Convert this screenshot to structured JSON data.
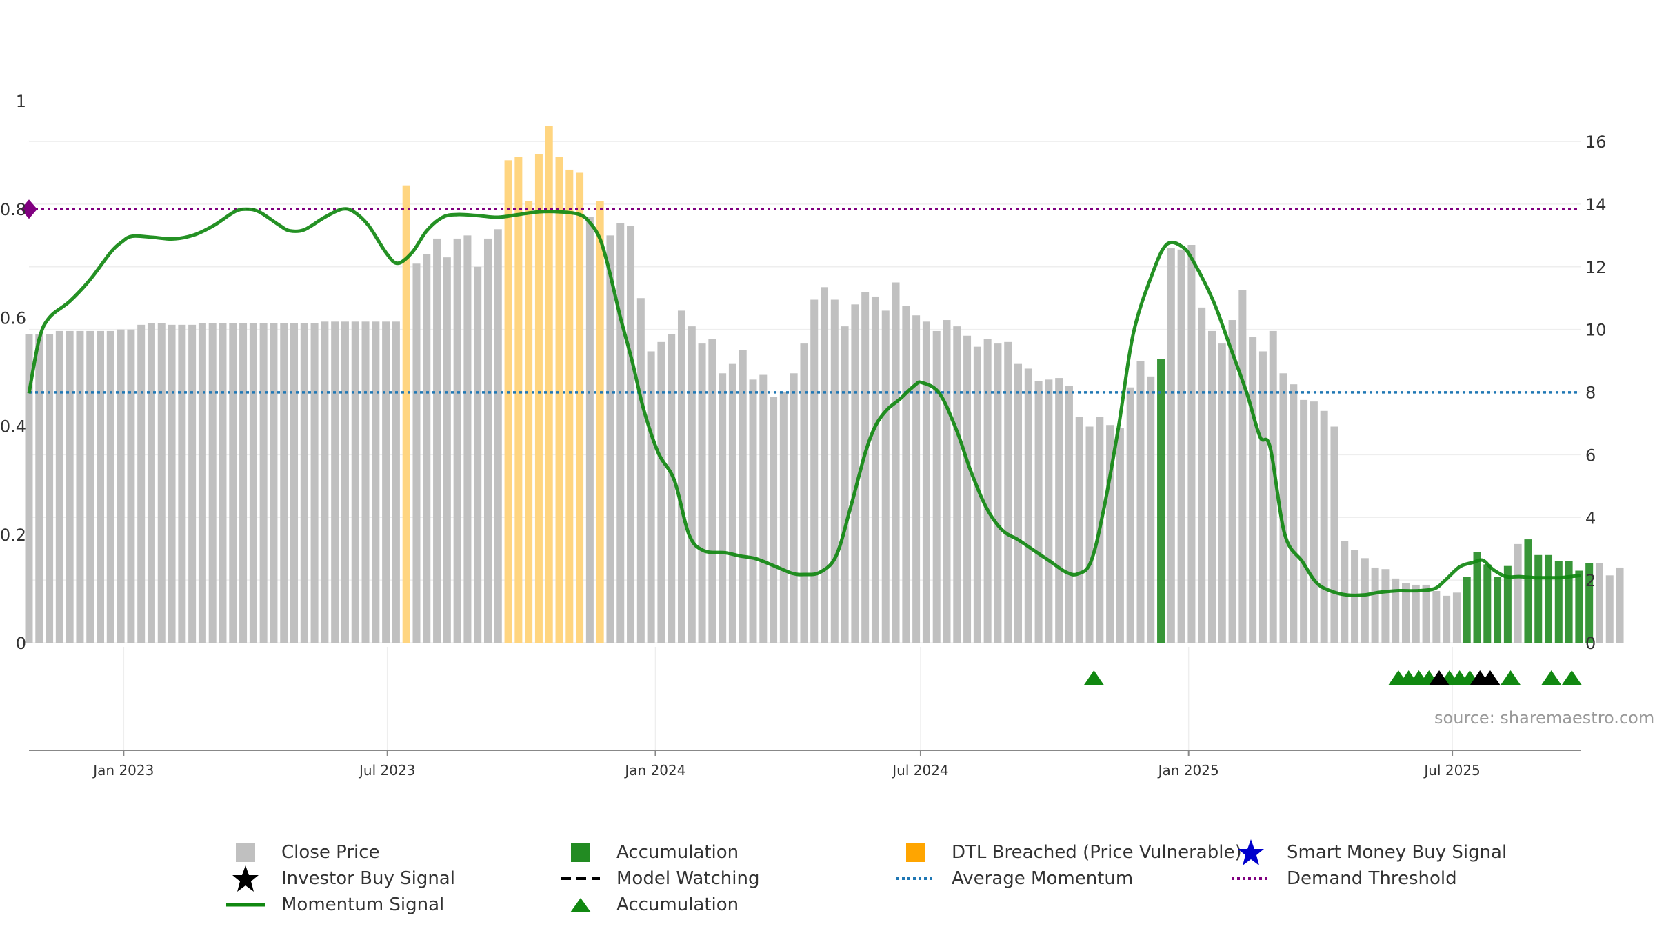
{
  "chart_data": {
    "type": "bar",
    "title": "",
    "source": "source: sharemaestro.com",
    "left_axis": {
      "ticks": [
        "0",
        "0.2",
        "0.4",
        "0.6",
        "0.8",
        "1"
      ],
      "range": [
        0,
        1
      ]
    },
    "right_axis": {
      "ticks": [
        "0",
        "2",
        "4",
        "6",
        "8",
        "10",
        "12",
        "14",
        "16"
      ],
      "range": [
        0,
        17.3
      ]
    },
    "x_axis": {
      "ticks": [
        "Jan 2023",
        "Jul 2023",
        "Jan 2024",
        "Jul 2024",
        "Jan 2025",
        "Jul 2025"
      ],
      "tick_dates": [
        "2023-01-01",
        "2023-07-01",
        "2024-01-01",
        "2024-07-01",
        "2025-01-01",
        "2025-07-01"
      ],
      "range": [
        "2022-10-28",
        "2025-09-27"
      ]
    },
    "grid": true,
    "legend_position": "bottom",
    "bar_series": {
      "name": "Close Price",
      "start_date": "2022-10-28",
      "step_days": 7,
      "values": [
        9.85,
        9.85,
        9.85,
        9.95,
        9.95,
        9.95,
        9.95,
        9.95,
        9.95,
        10.0,
        10.0,
        10.15,
        10.2,
        10.2,
        10.15,
        10.15,
        10.15,
        10.2,
        10.2,
        10.2,
        10.2,
        10.2,
        10.2,
        10.2,
        10.2,
        10.2,
        10.2,
        10.2,
        10.2,
        10.25,
        10.25,
        10.25,
        10.25,
        10.25,
        10.25,
        10.25,
        10.25,
        14.6,
        12.1,
        12.4,
        12.9,
        12.3,
        12.9,
        13.0,
        12.0,
        12.9,
        13.2,
        15.4,
        15.5,
        14.1,
        15.6,
        16.5,
        15.5,
        15.1,
        15.0,
        13.6,
        14.1,
        13.0,
        13.4,
        13.3,
        11.0,
        9.3,
        9.6,
        9.85,
        10.6,
        10.1,
        9.55,
        9.7,
        8.6,
        8.9,
        9.35,
        8.4,
        8.55,
        7.85,
        8.0,
        8.6,
        9.55,
        10.95,
        11.35,
        10.95,
        10.1,
        10.8,
        11.2,
        11.05,
        10.6,
        11.5,
        10.75,
        10.45,
        10.25,
        9.95,
        10.3,
        10.1,
        9.8,
        9.45,
        9.7,
        9.55,
        9.6,
        8.9,
        8.75,
        8.35,
        8.4,
        8.45,
        8.2,
        7.2,
        6.9,
        7.2,
        6.95,
        6.85,
        8.15,
        9.0,
        8.5,
        9.05,
        12.6,
        12.55,
        12.7,
        10.7,
        9.95,
        9.55,
        10.3,
        11.25,
        9.75,
        9.3,
        9.95,
        8.6,
        8.25,
        7.75,
        7.7,
        7.4,
        6.9,
        3.25,
        2.95,
        2.7,
        2.4,
        2.35,
        2.05,
        1.9,
        1.85,
        1.85,
        1.65,
        1.5,
        1.6,
        2.1,
        2.9,
        2.5,
        2.1,
        2.45,
        3.15,
        3.3,
        2.8,
        2.8,
        2.6,
        2.6,
        2.3,
        2.55,
        2.55,
        2.15,
        2.4
      ],
      "type": [
        "n",
        "n",
        "n",
        "n",
        "n",
        "n",
        "n",
        "n",
        "n",
        "n",
        "n",
        "n",
        "n",
        "n",
        "n",
        "n",
        "n",
        "n",
        "n",
        "n",
        "n",
        "n",
        "n",
        "n",
        "n",
        "n",
        "n",
        "n",
        "n",
        "n",
        "n",
        "n",
        "n",
        "n",
        "n",
        "n",
        "n",
        "d",
        "n",
        "n",
        "n",
        "n",
        "n",
        "n",
        "n",
        "n",
        "n",
        "d",
        "d",
        "d",
        "d",
        "d",
        "d",
        "d",
        "d",
        "n",
        "d",
        "n",
        "n",
        "n",
        "n",
        "n",
        "n",
        "n",
        "n",
        "n",
        "n",
        "n",
        "n",
        "n",
        "n",
        "n",
        "n",
        "n",
        "n",
        "n",
        "n",
        "n",
        "n",
        "n",
        "n",
        "n",
        "n",
        "n",
        "n",
        "n",
        "n",
        "n",
        "n",
        "n",
        "n",
        "n",
        "n",
        "n",
        "n",
        "n",
        "n",
        "n",
        "n",
        "n",
        "n",
        "n",
        "n",
        "n",
        "n",
        "n",
        "n",
        "n",
        "n",
        "n",
        "n",
        "a",
        "n",
        "n",
        "n",
        "n",
        "n",
        "n",
        "n",
        "n",
        "n",
        "n",
        "n",
        "n",
        "n",
        "n",
        "n",
        "n",
        "n",
        "n",
        "n",
        "n",
        "n",
        "n",
        "n",
        "n",
        "n",
        "n",
        "n",
        "n",
        "n",
        "a",
        "a",
        "a",
        "a",
        "a",
        "n",
        "a",
        "a",
        "a",
        "a",
        "a",
        "a",
        "a",
        "n",
        "n",
        "n",
        "a"
      ]
    },
    "momentum_signal": {
      "name": "Momentum Signal",
      "color": "#118811",
      "points": [
        [
          "2022-10-28",
          0.46
        ],
        [
          "2022-11-04",
          0.56
        ],
        [
          "2022-11-11",
          0.6
        ],
        [
          "2022-11-25",
          0.63
        ],
        [
          "2022-12-09",
          0.67
        ],
        [
          "2022-12-23",
          0.72
        ],
        [
          "2022-12-31",
          0.74
        ],
        [
          "2023-01-07",
          0.75
        ],
        [
          "2023-01-21",
          0.748
        ],
        [
          "2023-02-04",
          0.745
        ],
        [
          "2023-02-18",
          0.752
        ],
        [
          "2023-03-04",
          0.77
        ],
        [
          "2023-03-18",
          0.795
        ],
        [
          "2023-03-26",
          0.8
        ],
        [
          "2023-04-04",
          0.795
        ],
        [
          "2023-04-18",
          0.77
        ],
        [
          "2023-04-25",
          0.76
        ],
        [
          "2023-05-05",
          0.762
        ],
        [
          "2023-05-19",
          0.785
        ],
        [
          "2023-05-31",
          0.8
        ],
        [
          "2023-06-08",
          0.795
        ],
        [
          "2023-06-18",
          0.77
        ],
        [
          "2023-06-30",
          0.72
        ],
        [
          "2023-07-08",
          0.7
        ],
        [
          "2023-07-18",
          0.72
        ],
        [
          "2023-07-28",
          0.76
        ],
        [
          "2023-08-08",
          0.785
        ],
        [
          "2023-08-18",
          0.79
        ],
        [
          "2023-09-01",
          0.788
        ],
        [
          "2023-09-15",
          0.785
        ],
        [
          "2023-09-29",
          0.79
        ],
        [
          "2023-10-13",
          0.795
        ],
        [
          "2023-10-27",
          0.795
        ],
        [
          "2023-11-10",
          0.79
        ],
        [
          "2023-11-17",
          0.775
        ],
        [
          "2023-11-24",
          0.745
        ],
        [
          "2023-11-30",
          0.69
        ],
        [
          "2023-12-08",
          0.6
        ],
        [
          "2023-12-16",
          0.52
        ],
        [
          "2023-12-24",
          0.43
        ],
        [
          "2024-01-03",
          0.35
        ],
        [
          "2024-01-14",
          0.3
        ],
        [
          "2024-01-24",
          0.2
        ],
        [
          "2024-02-03",
          0.17
        ],
        [
          "2024-02-18",
          0.166
        ],
        [
          "2024-02-28",
          0.16
        ],
        [
          "2024-03-10",
          0.155
        ],
        [
          "2024-03-24",
          0.14
        ],
        [
          "2024-04-04",
          0.128
        ],
        [
          "2024-04-12",
          0.126
        ],
        [
          "2024-04-23",
          0.13
        ],
        [
          "2024-05-04",
          0.16
        ],
        [
          "2024-05-14",
          0.25
        ],
        [
          "2024-05-24",
          0.35
        ],
        [
          "2024-05-31",
          0.4
        ],
        [
          "2024-06-08",
          0.43
        ],
        [
          "2024-06-17",
          0.45
        ],
        [
          "2024-06-27",
          0.475
        ],
        [
          "2024-07-02",
          0.48
        ],
        [
          "2024-07-14",
          0.46
        ],
        [
          "2024-07-26",
          0.39
        ],
        [
          "2024-08-04",
          0.32
        ],
        [
          "2024-08-15",
          0.25
        ],
        [
          "2024-08-26",
          0.208
        ],
        [
          "2024-09-06",
          0.19
        ],
        [
          "2024-09-17",
          0.17
        ],
        [
          "2024-09-28",
          0.15
        ],
        [
          "2024-10-09",
          0.13
        ],
        [
          "2024-10-17",
          0.127
        ],
        [
          "2024-10-26",
          0.15
        ],
        [
          "2024-11-04",
          0.25
        ],
        [
          "2024-11-14",
          0.4
        ],
        [
          "2024-11-24",
          0.57
        ],
        [
          "2024-12-07",
          0.68
        ],
        [
          "2024-12-17",
          0.735
        ],
        [
          "2024-12-28",
          0.73
        ],
        [
          "2025-01-05",
          0.7
        ],
        [
          "2025-01-18",
          0.63
        ],
        [
          "2025-01-29",
          0.55
        ],
        [
          "2025-02-10",
          0.46
        ],
        [
          "2025-02-19",
          0.38
        ],
        [
          "2025-02-26",
          0.36
        ],
        [
          "2025-03-08",
          0.2
        ],
        [
          "2025-03-20",
          0.15
        ],
        [
          "2025-03-30",
          0.11
        ],
        [
          "2025-04-10",
          0.094
        ],
        [
          "2025-04-20",
          0.088
        ],
        [
          "2025-05-01",
          0.088
        ],
        [
          "2025-05-12",
          0.093
        ],
        [
          "2025-05-25",
          0.096
        ],
        [
          "2025-06-08",
          0.096
        ],
        [
          "2025-06-19",
          0.1
        ],
        [
          "2025-06-26",
          0.115
        ],
        [
          "2025-07-06",
          0.14
        ],
        [
          "2025-07-15",
          0.148
        ],
        [
          "2025-07-22",
          0.152
        ],
        [
          "2025-07-29",
          0.135
        ],
        [
          "2025-08-07",
          0.122
        ],
        [
          "2025-08-16",
          0.122
        ],
        [
          "2025-08-27",
          0.12
        ],
        [
          "2025-09-06",
          0.12
        ],
        [
          "2025-09-13",
          0.12
        ],
        [
          "2025-09-20",
          0.122
        ],
        [
          "2025-09-27",
          0.124
        ]
      ]
    },
    "average_momentum": {
      "name": "Average Momentum",
      "value": 0.462,
      "color": "#1f77b4"
    },
    "demand_threshold": {
      "name": "Demand Threshold",
      "value": 0.8,
      "color": "#800080"
    },
    "accumulation_markers": [
      "2024-10-28",
      "2025-05-25",
      "2025-06-01",
      "2025-06-08",
      "2025-06-15",
      "2025-06-29",
      "2025-07-06",
      "2025-07-13",
      "2025-08-10",
      "2025-09-07",
      "2025-09-21"
    ],
    "investor_buy_markers": [
      "2025-06-22",
      "2025-07-20",
      "2025-07-27"
    ],
    "colors": {
      "close_price": "#c0c0c0",
      "accumulation_bar": "#228b22",
      "dtl_breached": "#ffd580",
      "marker_green": "#118811",
      "marker_black": "#000000",
      "smart_money_star": "#0000cc"
    }
  },
  "legend": {
    "close_price": "Close Price",
    "accumulation": "Accumulation",
    "dtl_breached": "DTL Breached (Price Vulnerable)",
    "smart_money": "Smart Money Buy Signal",
    "investor_buy": "Investor Buy Signal",
    "model_watching": "Model Watching",
    "average_momentum": "Average Momentum",
    "demand_threshold": "Demand Threshold",
    "momentum_signal": "Momentum Signal",
    "accumulation_marker": "Accumulation"
  }
}
